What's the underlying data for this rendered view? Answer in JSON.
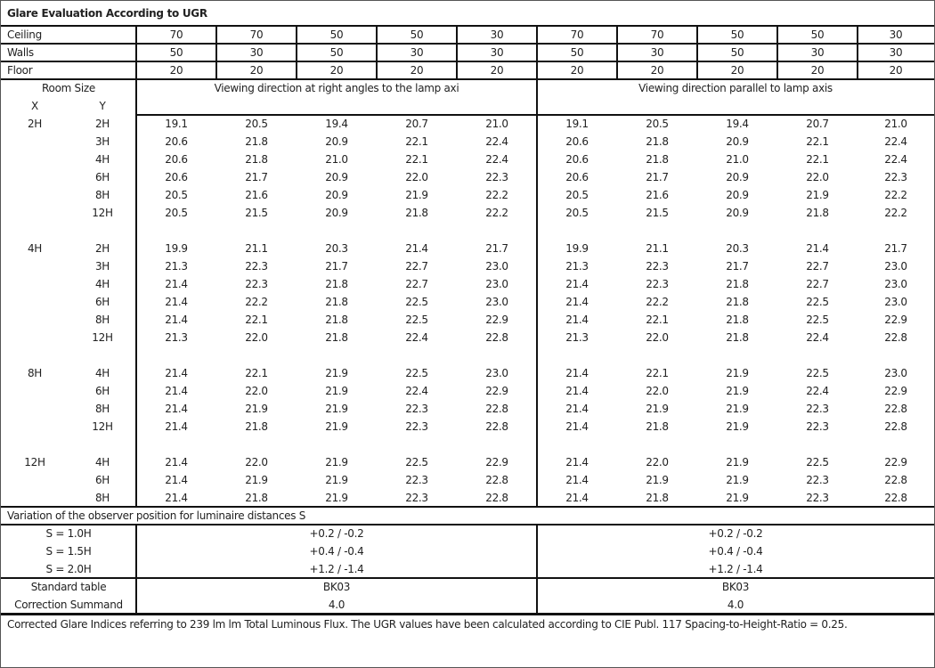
{
  "title": "Glare Evaluation According to UGR",
  "reflectances": [
    {
      "label": "Ceiling",
      "values": [
        "70",
        "70",
        "50",
        "50",
        "30",
        "70",
        "70",
        "50",
        "50",
        "30"
      ]
    },
    {
      "label": "Walls",
      "values": [
        "50",
        "30",
        "50",
        "30",
        "30",
        "50",
        "30",
        "50",
        "30",
        "30"
      ]
    },
    {
      "label": "Floor",
      "values": [
        "20",
        "20",
        "20",
        "20",
        "20",
        "20",
        "20",
        "20",
        "20",
        "20"
      ]
    }
  ],
  "room_size_label": "Room Size",
  "x_label": "X",
  "y_label": "Y",
  "direction_right_angles": "Viewing direction at right angles to the lamp axi",
  "direction_parallel": "Viewing direction parallel to lamp axis",
  "groups": [
    {
      "x": "2H",
      "rows": [
        {
          "y": "2H",
          "left": [
            "19.1",
            "20.5",
            "19.4",
            "20.7",
            "21.0"
          ],
          "right": [
            "19.1",
            "20.5",
            "19.4",
            "20.7",
            "21.0"
          ]
        },
        {
          "y": "3H",
          "left": [
            "20.6",
            "21.8",
            "20.9",
            "22.1",
            "22.4"
          ],
          "right": [
            "20.6",
            "21.8",
            "20.9",
            "22.1",
            "22.4"
          ]
        },
        {
          "y": "4H",
          "left": [
            "20.6",
            "21.8",
            "21.0",
            "22.1",
            "22.4"
          ],
          "right": [
            "20.6",
            "21.8",
            "21.0",
            "22.1",
            "22.4"
          ]
        },
        {
          "y": "6H",
          "left": [
            "20.6",
            "21.7",
            "20.9",
            "22.0",
            "22.3"
          ],
          "right": [
            "20.6",
            "21.7",
            "20.9",
            "22.0",
            "22.3"
          ]
        },
        {
          "y": "8H",
          "left": [
            "20.5",
            "21.6",
            "20.9",
            "21.9",
            "22.2"
          ],
          "right": [
            "20.5",
            "21.6",
            "20.9",
            "21.9",
            "22.2"
          ]
        },
        {
          "y": "12H",
          "left": [
            "20.5",
            "21.5",
            "20.9",
            "21.8",
            "22.2"
          ],
          "right": [
            "20.5",
            "21.5",
            "20.9",
            "21.8",
            "22.2"
          ]
        }
      ]
    },
    {
      "x": "4H",
      "rows": [
        {
          "y": "2H",
          "left": [
            "19.9",
            "21.1",
            "20.3",
            "21.4",
            "21.7"
          ],
          "right": [
            "19.9",
            "21.1",
            "20.3",
            "21.4",
            "21.7"
          ]
        },
        {
          "y": "3H",
          "left": [
            "21.3",
            "22.3",
            "21.7",
            "22.7",
            "23.0"
          ],
          "right": [
            "21.3",
            "22.3",
            "21.7",
            "22.7",
            "23.0"
          ]
        },
        {
          "y": "4H",
          "left": [
            "21.4",
            "22.3",
            "21.8",
            "22.7",
            "23.0"
          ],
          "right": [
            "21.4",
            "22.3",
            "21.8",
            "22.7",
            "23.0"
          ]
        },
        {
          "y": "6H",
          "left": [
            "21.4",
            "22.2",
            "21.8",
            "22.5",
            "23.0"
          ],
          "right": [
            "21.4",
            "22.2",
            "21.8",
            "22.5",
            "23.0"
          ]
        },
        {
          "y": "8H",
          "left": [
            "21.4",
            "22.1",
            "21.8",
            "22.5",
            "22.9"
          ],
          "right": [
            "21.4",
            "22.1",
            "21.8",
            "22.5",
            "22.9"
          ]
        },
        {
          "y": "12H",
          "left": [
            "21.3",
            "22.0",
            "21.8",
            "22.4",
            "22.8"
          ],
          "right": [
            "21.3",
            "22.0",
            "21.8",
            "22.4",
            "22.8"
          ]
        }
      ]
    },
    {
      "x": "8H",
      "rows": [
        {
          "y": "4H",
          "left": [
            "21.4",
            "22.1",
            "21.9",
            "22.5",
            "23.0"
          ],
          "right": [
            "21.4",
            "22.1",
            "21.9",
            "22.5",
            "23.0"
          ]
        },
        {
          "y": "6H",
          "left": [
            "21.4",
            "22.0",
            "21.9",
            "22.4",
            "22.9"
          ],
          "right": [
            "21.4",
            "22.0",
            "21.9",
            "22.4",
            "22.9"
          ]
        },
        {
          "y": "8H",
          "left": [
            "21.4",
            "21.9",
            "21.9",
            "22.3",
            "22.8"
          ],
          "right": [
            "21.4",
            "21.9",
            "21.9",
            "22.3",
            "22.8"
          ]
        },
        {
          "y": "12H",
          "left": [
            "21.4",
            "21.8",
            "21.9",
            "22.3",
            "22.8"
          ],
          "right": [
            "21.4",
            "21.8",
            "21.9",
            "22.3",
            "22.8"
          ]
        }
      ]
    },
    {
      "x": "12H",
      "rows": [
        {
          "y": "4H",
          "left": [
            "21.4",
            "22.0",
            "21.9",
            "22.5",
            "22.9"
          ],
          "right": [
            "21.4",
            "22.0",
            "21.9",
            "22.5",
            "22.9"
          ]
        },
        {
          "y": "6H",
          "left": [
            "21.4",
            "21.9",
            "21.9",
            "22.3",
            "22.8"
          ],
          "right": [
            "21.4",
            "21.9",
            "21.9",
            "22.3",
            "22.8"
          ]
        },
        {
          "y": "8H",
          "left": [
            "21.4",
            "21.8",
            "21.9",
            "22.3",
            "22.8"
          ],
          "right": [
            "21.4",
            "21.8",
            "21.9",
            "22.3",
            "22.8"
          ]
        }
      ]
    }
  ],
  "variation_title": "Variation of the observer position for luminaire distances S",
  "variation": [
    {
      "label": "S = 1.0H",
      "left": "+0.2 / -0.2",
      "right": "+0.2 / -0.2"
    },
    {
      "label": "S = 1.5H",
      "left": "+0.4 / -0.4",
      "right": "+0.4 / -0.4"
    },
    {
      "label": "S = 2.0H",
      "left": "+1.2 / -1.4",
      "right": "+1.2 / -1.4"
    }
  ],
  "standard_table": {
    "label": "Standard table",
    "left": "BK03",
    "right": "BK03"
  },
  "correction_summand": {
    "label": "Correction Summand",
    "left": "4.0",
    "right": "4.0"
  },
  "footer": "Corrected Glare Indices referring to 239 lm lm Total Luminous Flux. The UGR values have been calculated according to CIE Publ. 117    Spacing-to-Height-Ratio = 0.25."
}
